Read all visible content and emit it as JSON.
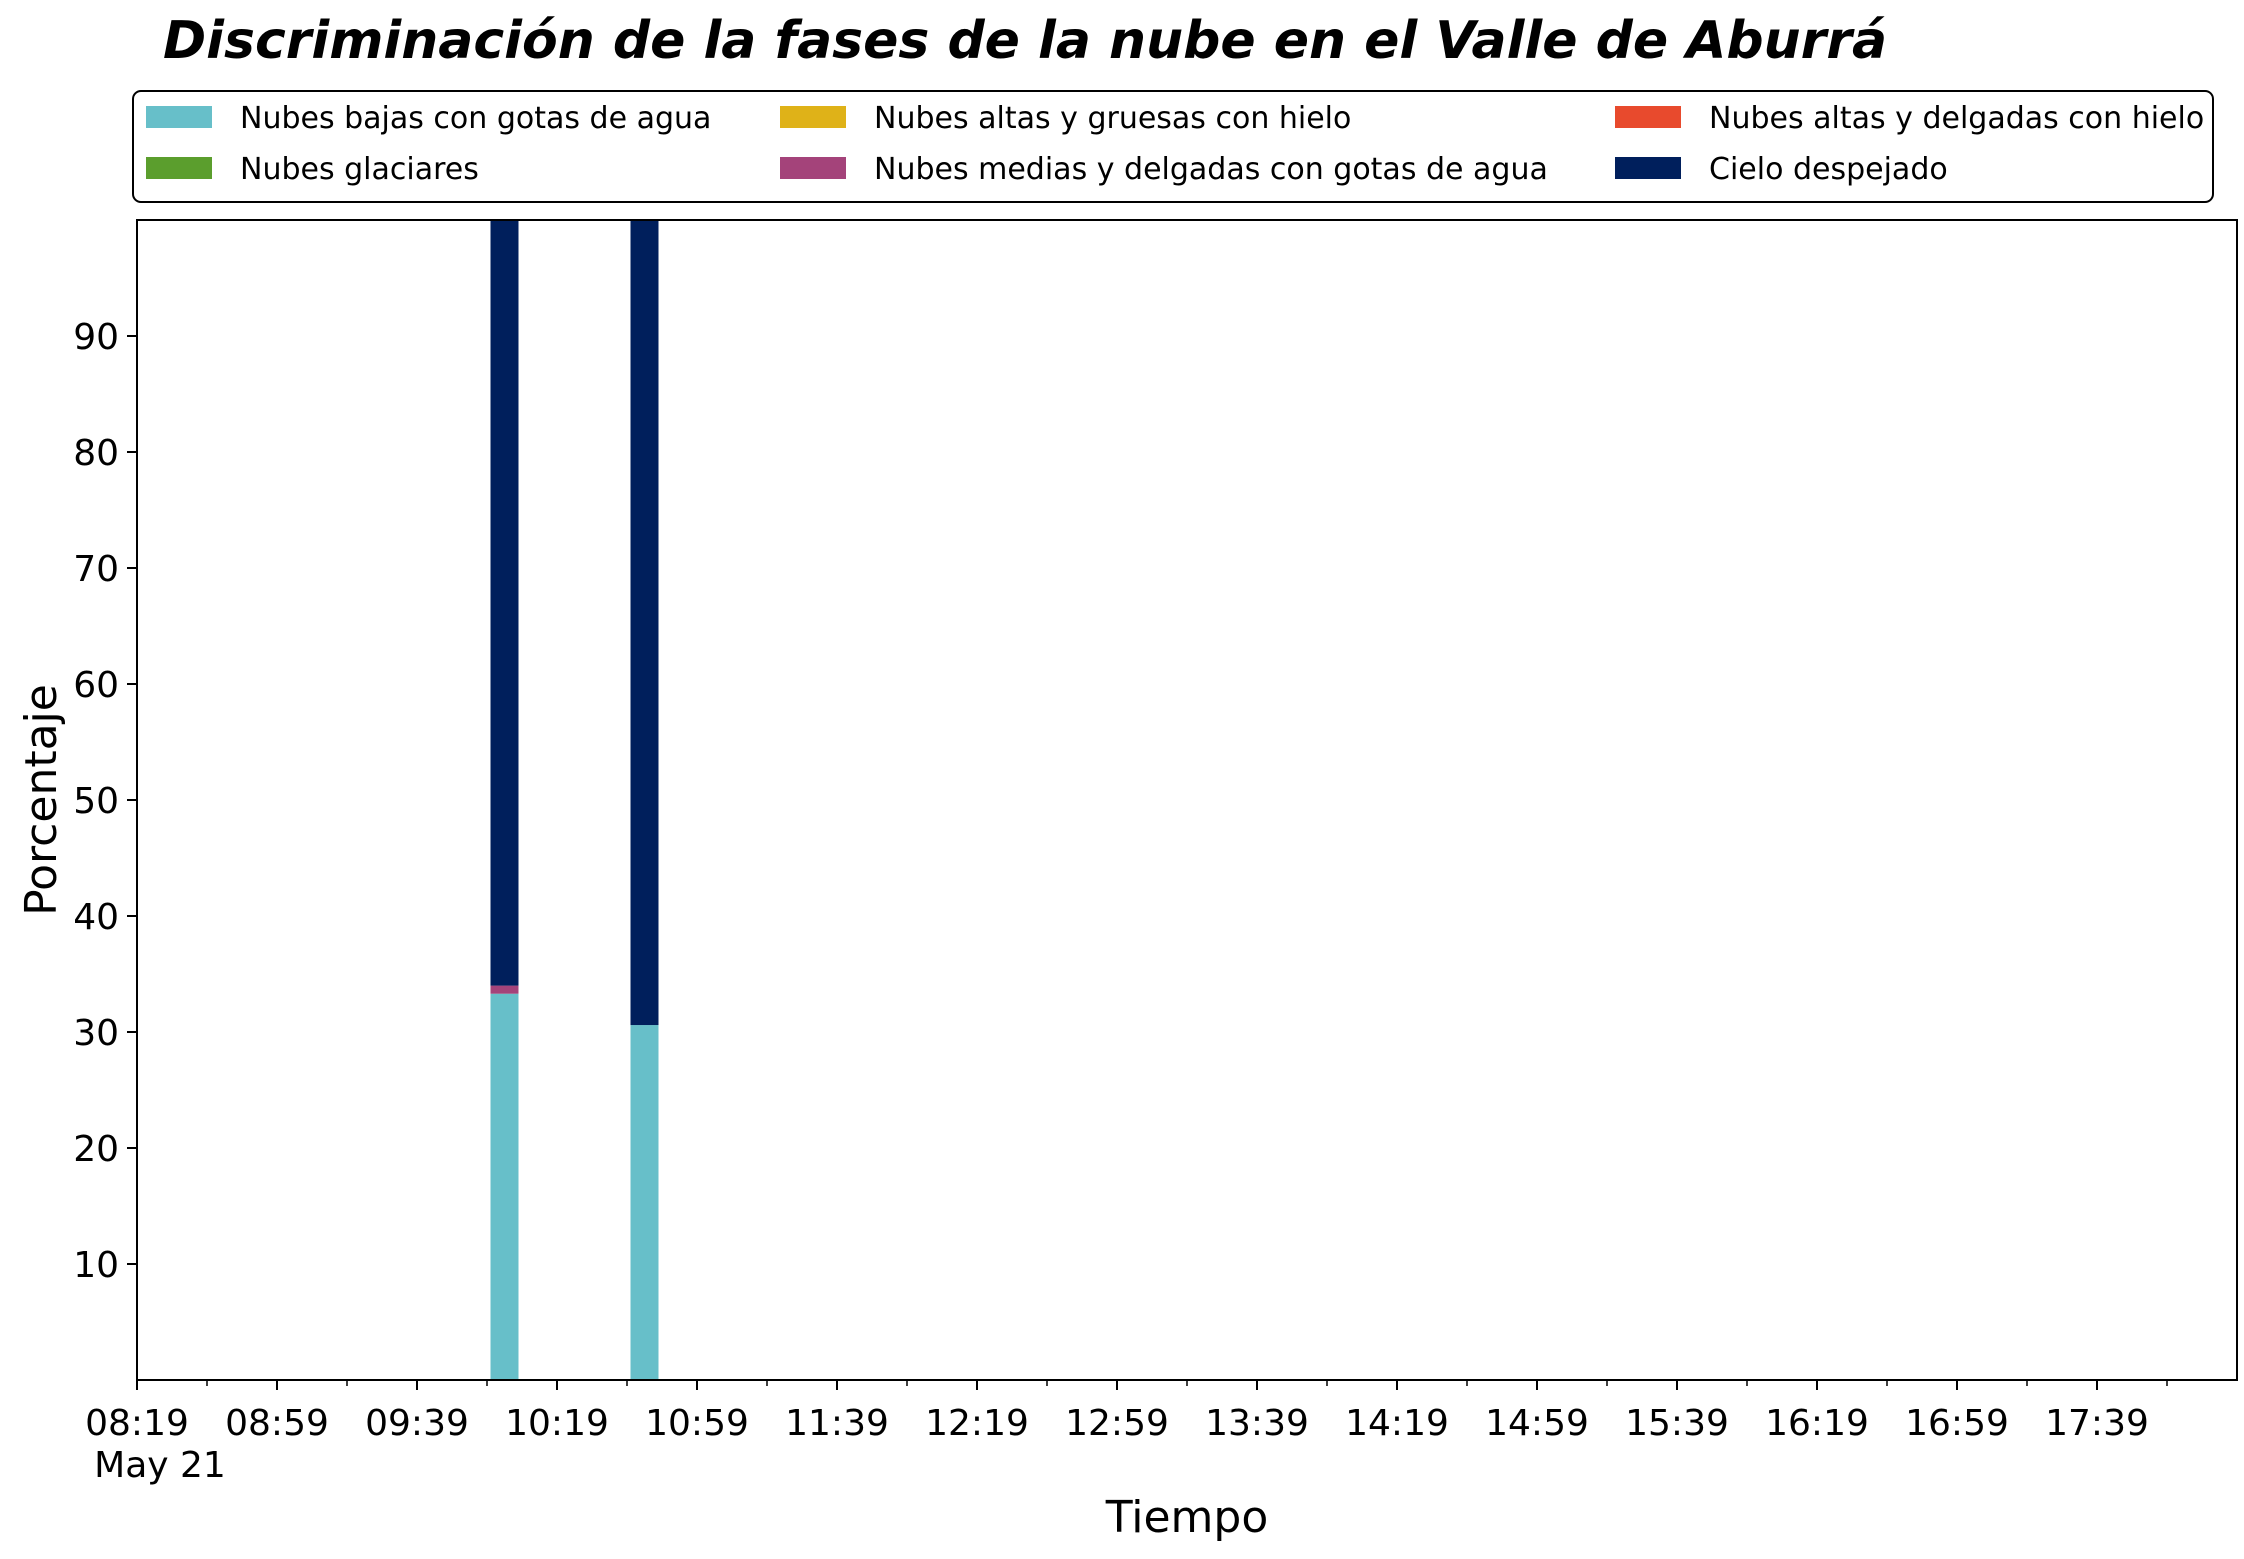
{
  "chart_data": {
    "type": "bar",
    "stacked": true,
    "title": "Discriminación de la fases de la nube en el Valle de Aburrá",
    "xlabel": "Tiempo",
    "ylabel": "Porcentaje",
    "date_label": "May 21",
    "x_tick_labels": [
      "08:19",
      "08:59",
      "09:39",
      "10:19",
      "10:59",
      "11:39",
      "12:19",
      "12:59",
      "13:39",
      "14:19",
      "14:59",
      "15:39",
      "16:19",
      "16:59",
      "17:39"
    ],
    "y_ticks": [
      10,
      20,
      30,
      40,
      50,
      60,
      70,
      80,
      90
    ],
    "ylim": [
      0,
      100
    ],
    "xlim": [
      "08:19",
      "18:19"
    ],
    "x": [
      "10:04",
      "10:44"
    ],
    "bar_width_minutes": 8,
    "legend_position": "top",
    "series": [
      {
        "name": "Nubes bajas con gotas de agua",
        "color": "#67BFC9",
        "values": [
          33.3,
          30.6
        ]
      },
      {
        "name": "Nubes glaciares",
        "color": "#5B9E2D",
        "values": [
          0,
          0
        ]
      },
      {
        "name": "Nubes altas y gruesas con hielo",
        "color": "#DFB218",
        "values": [
          0,
          0
        ]
      },
      {
        "name": "Nubes medias y delgadas con gotas de agua",
        "color": "#A4437A",
        "values": [
          0.7,
          0
        ]
      },
      {
        "name": "Nubes altas y delgadas con hielo",
        "color": "#E84A2D",
        "values": [
          0,
          0
        ]
      },
      {
        "name": "Cielo despejado",
        "color": "#001F5C",
        "values": [
          66.0,
          69.4
        ]
      }
    ]
  }
}
